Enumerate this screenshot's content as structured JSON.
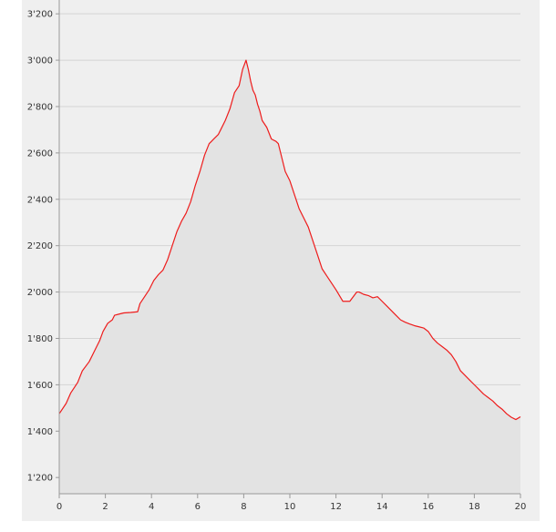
{
  "chart_data": {
    "type": "area",
    "title": "",
    "xlabel": "",
    "ylabel": "",
    "xlim": [
      0,
      20
    ],
    "ylim": [
      1130,
      3240
    ],
    "x_ticks": [
      0,
      2,
      4,
      6,
      8,
      10,
      12,
      14,
      16,
      18,
      20
    ],
    "x_tick_labels": [
      "0",
      "2",
      "4",
      "6",
      "8",
      "10",
      "12",
      "14",
      "16",
      "18",
      "20"
    ],
    "y_ticks": [
      1200,
      1400,
      1600,
      1800,
      2000,
      2200,
      2400,
      2600,
      2800,
      3000,
      3200
    ],
    "y_tick_labels": [
      "1'200",
      "1'400",
      "1'600",
      "1'800",
      "2'000",
      "2'200",
      "2'400",
      "2'600",
      "2'800",
      "3'000",
      "3'200"
    ],
    "grid": true,
    "legend": false,
    "colors": {
      "line": "#ee1c1c",
      "fill": "#e3e3e3",
      "background": "#efefef",
      "grid": "#d4d4d4",
      "axis": "#9a9a9a"
    },
    "series": [
      {
        "x": [
          0,
          0.3,
          0.5,
          0.8,
          1.0,
          1.3,
          1.6,
          1.75,
          1.9,
          2.1,
          2.3,
          2.4,
          2.6,
          2.8,
          3.1,
          3.4,
          3.5,
          3.7,
          3.9,
          4.1,
          4.3,
          4.5,
          4.7,
          4.9,
          5.1,
          5.3,
          5.5,
          5.7,
          5.9,
          6.1,
          6.3,
          6.5,
          6.6,
          6.7,
          6.9,
          7.0,
          7.2,
          7.4,
          7.6,
          7.8,
          7.95,
          8.1,
          8.2,
          8.3,
          8.4,
          8.5,
          8.6,
          8.7,
          8.8,
          9.0,
          9.2,
          9.4,
          9.5,
          9.6,
          9.8,
          10.0,
          10.2,
          10.4,
          10.6,
          10.8,
          11.0,
          11.2,
          11.4,
          11.6,
          11.8,
          12.0,
          12.3,
          12.6,
          12.9,
          13.0,
          13.2,
          13.4,
          13.6,
          13.8,
          14.0,
          14.2,
          14.4,
          14.6,
          14.8,
          15.0,
          15.2,
          15.4,
          15.6,
          15.8,
          16.0,
          16.2,
          16.4,
          16.6,
          16.8,
          17.0,
          17.2,
          17.4,
          17.6,
          17.8,
          18.0,
          18.2,
          18.4,
          18.6,
          18.8,
          19.0,
          19.2,
          19.4,
          19.6,
          19.8,
          20.0
        ],
        "values": [
          1475,
          1520,
          1565,
          1610,
          1660,
          1700,
          1760,
          1790,
          1830,
          1865,
          1880,
          1900,
          1905,
          1910,
          1912,
          1915,
          1950,
          1980,
          2010,
          2050,
          2075,
          2095,
          2140,
          2200,
          2260,
          2305,
          2340,
          2390,
          2460,
          2520,
          2590,
          2640,
          2650,
          2660,
          2680,
          2700,
          2740,
          2790,
          2860,
          2890,
          2960,
          3000,
          2960,
          2910,
          2870,
          2850,
          2810,
          2780,
          2740,
          2710,
          2660,
          2650,
          2640,
          2600,
          2520,
          2480,
          2420,
          2360,
          2320,
          2280,
          2220,
          2160,
          2100,
          2070,
          2040,
          2010,
          1960,
          1960,
          2000,
          2000,
          1990,
          1985,
          1975,
          1980,
          1960,
          1940,
          1920,
          1900,
          1880,
          1870,
          1862,
          1855,
          1850,
          1845,
          1830,
          1800,
          1780,
          1765,
          1750,
          1730,
          1700,
          1660,
          1640,
          1620,
          1600,
          1580,
          1560,
          1545,
          1530,
          1510,
          1495,
          1475,
          1460,
          1450,
          1462
        ]
      }
    ]
  }
}
